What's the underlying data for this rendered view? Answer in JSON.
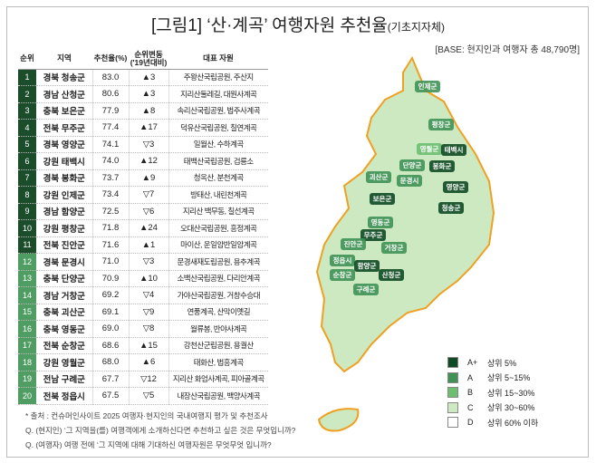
{
  "title": "[그림1] ‘산·계곡’ 여행자원 추천율",
  "title_sub": "(기초지자체)",
  "base": "[BASE: 현지인과 여행자 총 48,790명]",
  "headers": [
    "순위",
    "지역",
    "추천율(%)",
    "순위변동 ('19년대비)",
    "대표 자원"
  ],
  "colors": {
    "top": "#1b4d2b",
    "other": "#4f9d62",
    "aplus": "#0f4a25",
    "a": "#3f9255",
    "b": "#6cbf71",
    "c": "#cde9c2",
    "d": "#ffffff",
    "border": "#f0a020"
  },
  "chart_data": {
    "type": "table",
    "rows": [
      {
        "rank": "1",
        "region": "경북 청송군",
        "rate": "83.0",
        "change": "▲3",
        "resource": "주왕산국립공원, 주산지"
      },
      {
        "rank": "2",
        "region": "경남 산청군",
        "rate": "80.6",
        "change": "▲3",
        "resource": "지리산둘레길, 대원사계곡"
      },
      {
        "rank": "3",
        "region": "충북 보은군",
        "rate": "77.9",
        "change": "▲8",
        "resource": "속리산국립공원, 법주사계곡"
      },
      {
        "rank": "4",
        "region": "전북 무주군",
        "rate": "77.4",
        "change": "▲17",
        "resource": "덕유산국립공원, 칠연계곡"
      },
      {
        "rank": "5",
        "region": "경북 영양군",
        "rate": "74.1",
        "change": "▽3",
        "resource": "일월산, 수하계곡"
      },
      {
        "rank": "6",
        "region": "강원 태백시",
        "rate": "74.0",
        "change": "▲12",
        "resource": "태백산국립공원, 검룡소"
      },
      {
        "rank": "7",
        "region": "경북 봉화군",
        "rate": "73.7",
        "change": "▲9",
        "resource": "청옥산, 분천계곡"
      },
      {
        "rank": "8",
        "region": "강원 인제군",
        "rate": "73.4",
        "change": "▽7",
        "resource": "방태산, 내린천계곡"
      },
      {
        "rank": "9",
        "region": "경남 함양군",
        "rate": "72.5",
        "change": "▽6",
        "resource": "지리산 백무동, 칠선계곡"
      },
      {
        "rank": "10",
        "region": "강원 평창군",
        "rate": "71.8",
        "change": "▲24",
        "resource": "오대산국립공원, 흥정계곡"
      },
      {
        "rank": "11",
        "region": "전북 진안군",
        "rate": "71.6",
        "change": "▲1",
        "resource": "마이산, 운일암반일암계곡"
      },
      {
        "rank": "12",
        "region": "경북 문경시",
        "rate": "71.0",
        "change": "▽3",
        "resource": "문경새재도립공원, 용추계곡"
      },
      {
        "rank": "13",
        "region": "충북 단양군",
        "rate": "70.9",
        "change": "▲10",
        "resource": "소백산국립공원, 다리안계곡"
      },
      {
        "rank": "14",
        "region": "경남 거창군",
        "rate": "69.2",
        "change": "▽4",
        "resource": "가야산국립공원, 거창수승대"
      },
      {
        "rank": "15",
        "region": "충북 괴산군",
        "rate": "69.1",
        "change": "▽9",
        "resource": "연풍계곡, 산막이옛길"
      },
      {
        "rank": "16",
        "region": "충북 영동군",
        "rate": "69.0",
        "change": "▽8",
        "resource": "월류봉, 반야사계곡"
      },
      {
        "rank": "17",
        "region": "전북 순창군",
        "rate": "68.6",
        "change": "▲15",
        "resource": "강천산군립공원, 용궐산"
      },
      {
        "rank": "18",
        "region": "강원 영월군",
        "rate": "68.0",
        "change": "▲6",
        "resource": "태화산, 법흥계곡"
      },
      {
        "rank": "19",
        "region": "전남 구례군",
        "rate": "67.7",
        "change": "▽12",
        "resource": "지리산 화엄사계곡, 피아골계곡"
      },
      {
        "rank": "20",
        "region": "전북 정읍시",
        "rate": "67.5",
        "change": "▽5",
        "resource": "내장산국립공원, 백양사계곡"
      }
    ]
  },
  "map_labels": [
    "인제군",
    "평창군",
    "영월군",
    "태백시",
    "단양군",
    "봉화군",
    "문경시",
    "괴산군",
    "영양군",
    "보은군",
    "청송군",
    "영동군",
    "무주군",
    "진안군",
    "거창군",
    "정읍시",
    "함양군",
    "산청군",
    "순창군",
    "구례군"
  ],
  "legend": [
    {
      "grade": "A+",
      "label": "상위 5%"
    },
    {
      "grade": "A",
      "label": "상위 5~15%"
    },
    {
      "grade": "B",
      "label": "상위 15~30%"
    },
    {
      "grade": "C",
      "label": "상위 30~60%"
    },
    {
      "grade": "D",
      "label": "상위 60% 이하"
    }
  ],
  "notes": [
    "* 출처 : 컨슈머인사이트 2025 여행자·현지인의 국내여행지 평가 및 추천조사",
    "Q. (현지인) ‘그 지역을(를) 여행객에게 소개하신다면 추천하고 싶은 것은 무엇입니까?",
    "Q. (여행자) 여행 전에 ‘그 지역에 대해 기대하신 여행자원은 무엇무엇 입니까?"
  ]
}
